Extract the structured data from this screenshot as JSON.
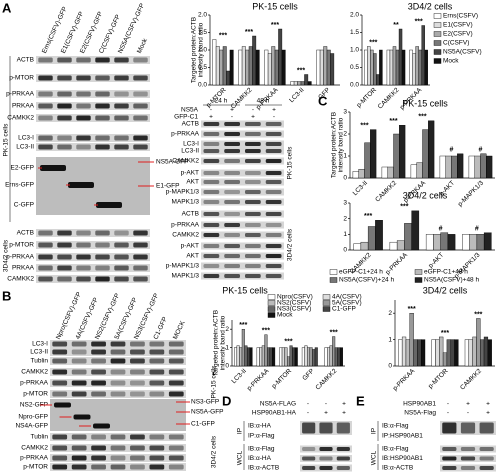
{
  "figure": {
    "panel_labels": [
      "A",
      "B",
      "C",
      "D",
      "E"
    ],
    "A": {
      "lanes": [
        "Erns(CSFV)-GFP",
        "E1(CSFV)-GFP",
        "E2(CSFV)-GFP",
        "C(CSFV)-GFP",
        "NS5A(CSFV)-GFP",
        "Mock"
      ],
      "rows": [
        "ACTB",
        "p-MTOR",
        "p-PRKAA",
        "PRKAA",
        "CAMKK2",
        "LC3-I",
        "LC3-II",
        "E2-GFP",
        "Erns-GFP",
        "C-GFP",
        "ACTB",
        "p-MTOR",
        "p-PRKAA",
        "PRKAA",
        "CAMKK2"
      ],
      "right_labels": [
        "NS5A-GFP",
        "E1-GFP"
      ],
      "cells": [
        "PK-15 cells",
        "3D4/2 cells"
      ]
    },
    "B": {
      "lanes": [
        "Npro(CSFV)-GFP",
        "4A(CSFV)-GFP",
        "NS2(CSFV)-GFP",
        "5A(CSFV)-GFP",
        "NS3(CSFV)-GFP",
        "C1-GFP",
        "MOCK"
      ],
      "rows": [
        "LC3-I",
        "LC3-II",
        "Tublin",
        "CAMKK2",
        "p-PRKAA",
        "p-MTOR",
        "NS2-GFP",
        "Npro-GFP",
        "NS4A-GFP",
        "Tublin",
        "CAMKK2",
        "p-PRKAA",
        "p-MTOR"
      ],
      "right_labels": [
        "NS3-GFP",
        "NS5A-GFP",
        "C1-GFP"
      ],
      "cells": [
        "PK-15 cells",
        "3D4/2 cells"
      ]
    },
    "C": {
      "times": [
        "24 h",
        "48 h"
      ],
      "treatments": [
        {
          "label": "NS5A",
          "signs": [
            "-",
            "+",
            "-",
            "+"
          ]
        },
        {
          "label": "GFP-C1",
          "signs": [
            "+",
            "-",
            "+",
            "-"
          ]
        }
      ],
      "rows": [
        "ACTB",
        "p-PRKAA",
        "LC3-I",
        "LC3-II",
        "CAMKK2",
        "p-AKT",
        "AKT",
        "p-MAPK1/3",
        "MAPK1/3",
        "ACTB",
        "p-PRKAA",
        "CAMKK2",
        "p-AKT",
        "AKT",
        "p-MAPK1/3",
        "MAPK1/3"
      ],
      "cells": [
        "PK-15 cells",
        "3D4/2 cells"
      ]
    },
    "D": {
      "treatments": [
        {
          "label": "NS5A-FLAG",
          "signs": [
            "-",
            "-",
            "+"
          ]
        },
        {
          "label": "HSP90AB1-HA",
          "signs": [
            "-",
            "+",
            "+"
          ]
        }
      ],
      "ip_rows": [
        "IB:α-HA",
        "IP:α-Flag"
      ],
      "wcl_rows": [
        "IB:α-Flag",
        "IB:α-HA",
        "IB:α-ACTB"
      ],
      "groups": [
        "IP",
        "WCL"
      ]
    },
    "E": {
      "treatments": [
        {
          "label": "HSP90AB1",
          "signs": [
            "-",
            "+",
            "+"
          ]
        },
        {
          "label": "NS5A-Flag",
          "signs": [
            "-",
            "-",
            "+"
          ]
        }
      ],
      "ip_rows": [
        "IB:α-Flag",
        "IP:HSP90AB1"
      ],
      "wcl_rows": [
        "IB:α-Flag",
        "IB:HSP90AB1",
        "IB:α-ACTB"
      ],
      "groups": [
        "IP",
        "WCL"
      ]
    }
  },
  "chart_data": [
    {
      "type": "bar",
      "title": "PK-15 cells",
      "ylabel": [
        "Targeted protein:ACTB",
        "intensity band ratio"
      ],
      "categories": [
        "p-MTOR",
        "CAMKK2",
        "p-PRKAA",
        "LC3-II",
        "GFP"
      ],
      "series": [
        {
          "color": "#ffffff",
          "values": [
            1.3,
            1.0,
            1.0,
            0.1,
            1.0
          ]
        },
        {
          "color": "#dddddd",
          "values": [
            1.1,
            1.1,
            0.9,
            0.1,
            1.0
          ]
        },
        {
          "color": "#aaaaaa",
          "values": [
            1.0,
            1.0,
            1.1,
            0.1,
            1.1
          ]
        },
        {
          "color": "#777777",
          "values": [
            1.1,
            1.1,
            1.0,
            0.1,
            1.0
          ]
        },
        {
          "color": "#444444",
          "values": [
            0.4,
            1.4,
            1.6,
            0.3,
            0.9
          ]
        },
        {
          "color": "#111111",
          "values": [
            1.0,
            1.0,
            1.0,
            0.1,
            0.0
          ]
        }
      ],
      "ylim": [
        0,
        2
      ],
      "yticks": [
        {
          "value": 0,
          "label": "0.0"
        },
        {
          "value": 0.5,
          "label": "0.5"
        },
        {
          "value": 1,
          "label": "1.0"
        },
        {
          "value": 1.5,
          "label": "1.5"
        },
        {
          "value": 2,
          "label": "2.0"
        }
      ],
      "annotations": [
        "***",
        "***",
        "***",
        "***",
        null
      ],
      "legend": false
    },
    {
      "type": "bar",
      "title": "3D4/2 cells",
      "categories": [
        "p-MTOR",
        "CAMKK2",
        "p-PRKAA"
      ],
      "series": [
        {
          "name": "Erns(CSFV)",
          "color": "#ffffff",
          "values": [
            1.0,
            1.0,
            1.0
          ]
        },
        {
          "name": "E1(CSFV)",
          "color": "#dddddd",
          "values": [
            1.1,
            1.0,
            0.9
          ]
        },
        {
          "name": "E2(CSFV)",
          "color": "#aaaaaa",
          "values": [
            1.0,
            1.1,
            1.1
          ]
        },
        {
          "name": "C(CSFV)",
          "color": "#777777",
          "values": [
            0.9,
            1.0,
            1.0
          ]
        },
        {
          "name": "NS5A(CSFV)",
          "color": "#444444",
          "values": [
            0.3,
            1.6,
            1.7
          ]
        },
        {
          "name": "Mock",
          "color": "#111111",
          "values": [
            1.0,
            1.0,
            1.0
          ]
        }
      ],
      "ylim": [
        0,
        2
      ],
      "yticks": [
        {
          "value": 0,
          "label": "0.0"
        },
        {
          "value": 0.5,
          "label": "0.5"
        },
        {
          "value": 1,
          "label": "1.0"
        },
        {
          "value": 1.5,
          "label": "1.5"
        },
        {
          "value": 2,
          "label": "2.0"
        }
      ],
      "annotations": [
        "***",
        "**",
        "***"
      ],
      "legend": true
    },
    {
      "type": "bar",
      "title": "PK-15 cells",
      "ylabel": [
        "Targeted protein:ACTB",
        "intensity band ratio"
      ],
      "categories": [
        "LC3-II",
        "CAMKK2",
        "p-PRKAA",
        "p-AKT",
        "p-MAPK1/3"
      ],
      "series": [
        {
          "color": "#ffffff",
          "values": [
            0.3,
            0.5,
            0.6,
            1.0,
            1.0
          ]
        },
        {
          "color": "#bbbbbb",
          "values": [
            0.4,
            0.5,
            0.7,
            1.0,
            1.0
          ]
        },
        {
          "color": "#777777",
          "values": [
            1.6,
            2.0,
            2.2,
            1.0,
            1.1
          ]
        },
        {
          "color": "#222222",
          "values": [
            2.2,
            2.4,
            2.6,
            1.1,
            1.0
          ]
        }
      ],
      "ylim": [
        0,
        3
      ],
      "yticks": [
        0,
        1,
        2,
        3
      ],
      "annotations": [
        "***",
        "***",
        "***",
        "#",
        "#"
      ],
      "legend": false
    },
    {
      "type": "bar",
      "title": "3D4/2 cells",
      "categories": [
        "CAMKK2",
        "p-PRKAA",
        "p-AKT",
        "p-MAPK1/3"
      ],
      "series": [
        {
          "name": "eGFP-C1+24 h",
          "color": "#ffffff",
          "values": [
            0.4,
            0.5,
            1.0,
            1.0
          ]
        },
        {
          "name": "eGFP-C1+48 h",
          "color": "#bbbbbb",
          "values": [
            0.5,
            0.6,
            1.0,
            1.0
          ]
        },
        {
          "name": "NS5A(CSFV)+24 h",
          "color": "#777777",
          "values": [
            1.5,
            1.7,
            1.1,
            1.0
          ]
        },
        {
          "name": "NS5A(CSFV)+48 h",
          "color": "#222222",
          "values": [
            1.9,
            2.5,
            1.0,
            1.1
          ]
        }
      ],
      "ylim": [
        0,
        3
      ],
      "yticks": [
        0,
        1,
        2,
        3
      ],
      "annotations": [
        "***",
        "***",
        "#",
        "#"
      ],
      "legend": true
    },
    {
      "type": "bar",
      "title": "PK-15 cells",
      "ylabel": [
        "Targeted protein:ACTB",
        "intensity band ratio"
      ],
      "categories": [
        "LC3-II",
        "p-PRKAA",
        "p-MTOR",
        "GFP",
        "CAMKK2"
      ],
      "series": [
        {
          "name": "Npro(CSFV)",
          "color": "#ffffff",
          "values": [
            1.0,
            1.0,
            1.0,
            1.0,
            1.0
          ]
        },
        {
          "name": "4A(CSFV)",
          "color": "#dddddd",
          "values": [
            1.1,
            1.0,
            1.0,
            1.1,
            1.0
          ]
        },
        {
          "name": "NS2(CSFV)",
          "color": "#bbbbbb",
          "values": [
            1.0,
            1.1,
            1.0,
            1.0,
            1.1
          ]
        },
        {
          "name": "5A(CSFV)",
          "color": "#999999",
          "values": [
            2.0,
            1.7,
            0.5,
            1.0,
            1.6
          ]
        },
        {
          "name": "NS3(CSFV)",
          "color": "#666666",
          "values": [
            1.1,
            1.0,
            1.1,
            0.9,
            1.0
          ]
        },
        {
          "name": "C1-GFP",
          "color": "#444444",
          "values": [
            1.0,
            1.0,
            1.0,
            1.0,
            1.0
          ]
        },
        {
          "name": "Mock",
          "color": "#111111",
          "values": [
            1.0,
            1.0,
            1.0,
            0,
            1.0
          ]
        }
      ],
      "ylim": [
        0,
        2.5
      ],
      "yticks": [
        0,
        1,
        2
      ],
      "annotations": [
        "***",
        "***",
        "***",
        null,
        "***"
      ],
      "legend": true
    },
    {
      "type": "bar",
      "title": "3D4/2 cells",
      "categories": [
        "p-PRKAA",
        "p-MTOR",
        "CAMKK2"
      ],
      "series": [
        {
          "color": "#ffffff",
          "values": [
            1.0,
            1.0,
            1.0
          ]
        },
        {
          "color": "#dddddd",
          "values": [
            1.1,
            1.0,
            1.0
          ]
        },
        {
          "color": "#bbbbbb",
          "values": [
            1.0,
            1.1,
            1.1
          ]
        },
        {
          "color": "#999999",
          "values": [
            2.0,
            0.5,
            1.8
          ]
        },
        {
          "color": "#666666",
          "values": [
            1.0,
            1.0,
            1.0
          ]
        },
        {
          "color": "#444444",
          "values": [
            1.0,
            1.0,
            1.1
          ]
        },
        {
          "color": "#111111",
          "values": [
            1.0,
            1.0,
            1.0
          ]
        }
      ],
      "ylim": [
        0,
        2.5
      ],
      "yticks": [
        0,
        1,
        2
      ],
      "annotations": [
        "***",
        "***",
        "***"
      ],
      "legend": false
    }
  ]
}
